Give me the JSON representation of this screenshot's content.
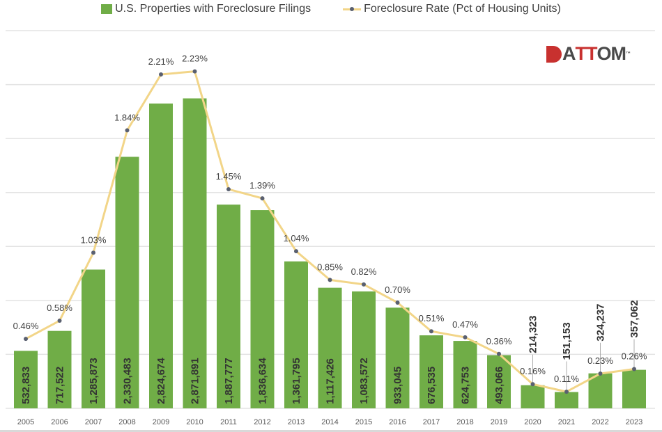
{
  "chart_data": {
    "type": "bar",
    "title": "",
    "categories": [
      "2005",
      "2006",
      "2007",
      "2008",
      "2009",
      "2010",
      "2011",
      "2012",
      "2013",
      "2014",
      "2015",
      "2016",
      "2017",
      "2018",
      "2019",
      "2020",
      "2021",
      "2022",
      "2023"
    ],
    "series": [
      {
        "name": "U.S. Properties with Foreclosure Filings",
        "type": "bar",
        "color": "#70ad47",
        "values": [
          532833,
          717522,
          1285873,
          2330483,
          2824674,
          2871891,
          1887777,
          1836634,
          1361795,
          1117426,
          1083572,
          933045,
          676535,
          624753,
          493066,
          214323,
          151153,
          324237,
          357062
        ],
        "labels": [
          "532,833",
          "717,522",
          "1,285,873",
          "2,330,483",
          "2,824,674",
          "2,871,891",
          "1,887,777",
          "1,836,634",
          "1,361,795",
          "1,117,426",
          "1,083,572",
          "933,045",
          "676,535",
          "624,753",
          "493,066",
          "214,323",
          "151,153",
          "324,237",
          "357,062"
        ]
      },
      {
        "name": "Foreclosure Rate (Pct of Housing Units)",
        "type": "line",
        "color": "#f2d588",
        "marker_color": "#5a6070",
        "values": [
          0.46,
          0.58,
          1.03,
          1.84,
          2.21,
          2.23,
          1.45,
          1.39,
          1.04,
          0.85,
          0.82,
          0.7,
          0.51,
          0.47,
          0.36,
          0.16,
          0.11,
          0.23,
          0.26
        ],
        "labels": [
          "0.46%",
          "0.58%",
          "1.03%",
          "1.84%",
          "2.21%",
          "2.23%",
          "1.45%",
          "1.39%",
          "1.04%",
          "0.85%",
          "0.82%",
          "0.70%",
          "0.51%",
          "0.47%",
          "0.36%",
          "0.16%",
          "0.11%",
          "0.23%",
          "0.26%"
        ]
      }
    ],
    "ylim": [
      0,
      3500000
    ],
    "y2lim": [
      0,
      2.5
    ],
    "grid": true,
    "legend": "top"
  },
  "logo": {
    "text_a": "A",
    "text_tt": "TT",
    "text_om": "OM",
    "tm": "™"
  }
}
